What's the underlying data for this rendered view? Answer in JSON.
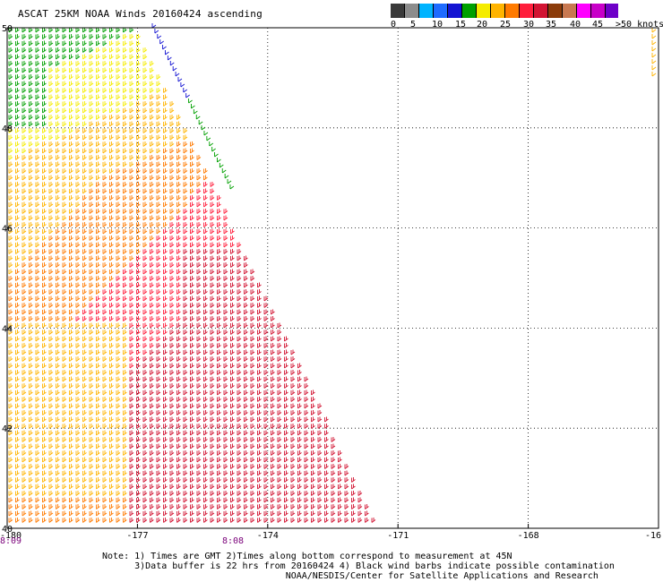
{
  "title": "ASCAT 25KM NOAA Winds 20160424 ascending",
  "legend": {
    "colors": [
      "#3a3a3a",
      "#8c8c8c",
      "#00b4ff",
      "#1e6bff",
      "#1414d2",
      "#00a000",
      "#f5ec00",
      "#ffb400",
      "#ff7a00",
      "#ff1e3c",
      "#d21432",
      "#8c3c0a",
      "#c87850",
      "#ff00ff",
      "#c800c8",
      "#6e00c8"
    ],
    "labels": [
      "0",
      "5",
      "10",
      "15",
      "20",
      "25",
      "30",
      "35",
      "40",
      "45",
      ">50 knots"
    ]
  },
  "axes": {
    "lon_labels": [
      "-180",
      "-177",
      "-174",
      "-171",
      "-168",
      "-16"
    ],
    "lat_labels": [
      "50",
      "48",
      "46",
      "44",
      "42",
      "40"
    ]
  },
  "times": [
    "8:09",
    "8:08"
  ],
  "notes": [
    "Note: 1) Times are GMT 2)Times along bottom correspond to measurement at 45N",
    "      3)Data buffer is 22 hrs from 20160424 4) Black wind barbs indicate possible contamination",
    "                                  NOAA/NESDIS/Center for Satellite Applications and Research"
  ],
  "map_extent": {
    "lon_min": -180,
    "lon_max": -165,
    "lat_min": 40,
    "lat_max": 50
  }
}
